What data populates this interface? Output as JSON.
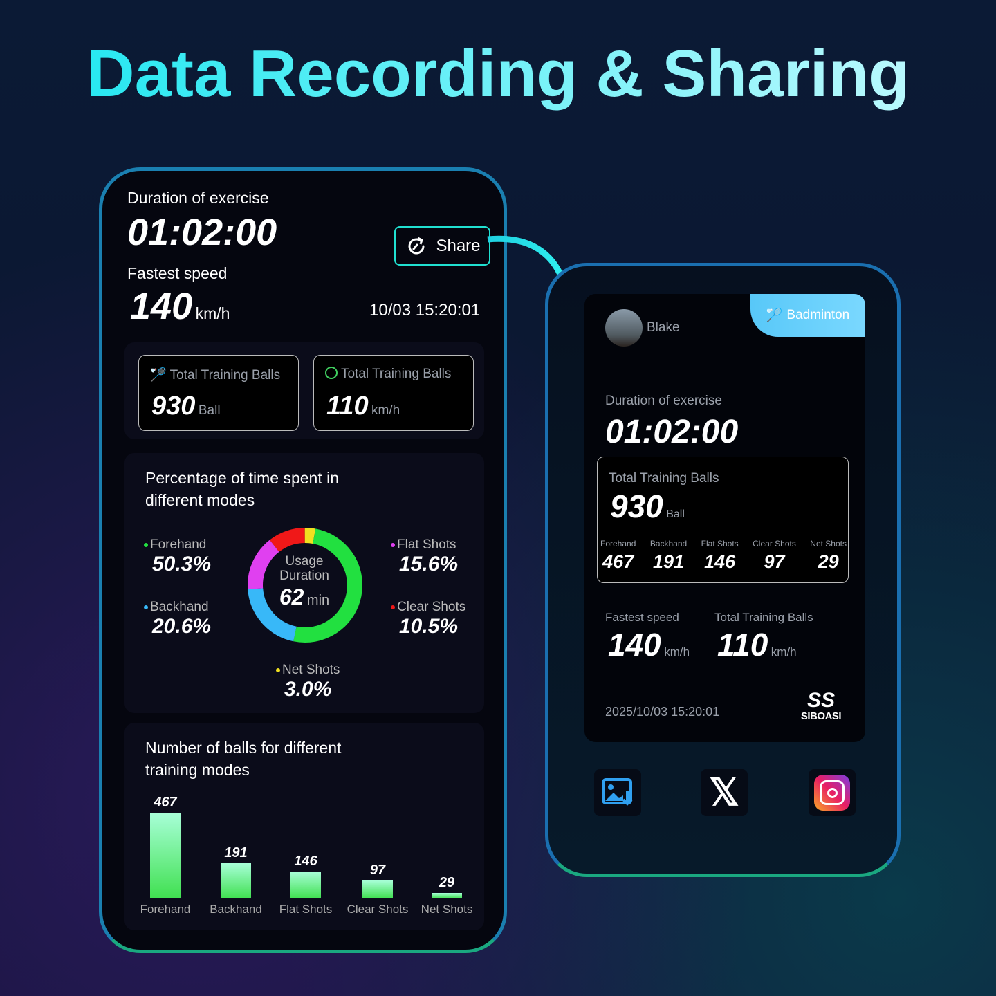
{
  "headline": "Data Recording & Sharing",
  "left": {
    "duration_label": "Duration of exercise",
    "duration": "01:02:00",
    "fastest_label": "Fastest speed",
    "fastest": "140",
    "speed_unit": "km/h",
    "datetime": "10/03 15:20:01",
    "share_label": "Share",
    "stat1": {
      "label": "Total Training Balls",
      "value": "930",
      "unit": "Ball",
      "icon": "shuttlecock-icon"
    },
    "stat2": {
      "label": "Total Training Balls",
      "value": "110",
      "unit": "km/h",
      "icon": "speed-gauge-icon"
    },
    "pct_title": "Percentage of time spent in different modes",
    "donut": {
      "center_label": "Usage Duration",
      "center_value": "62",
      "center_unit": "min"
    },
    "modes": [
      {
        "name": "Forehand",
        "pct": "50.3%",
        "value": 50.3,
        "color": "#22e040"
      },
      {
        "name": "Backhand",
        "pct": "20.6%",
        "value": 20.6,
        "color": "#38b8f8"
      },
      {
        "name": "Flat Shots",
        "pct": "15.6%",
        "value": 15.6,
        "color": "#e040f0"
      },
      {
        "name": "Clear Shots",
        "pct": "10.5%",
        "value": 10.5,
        "color": "#f01818"
      },
      {
        "name": "Net Shots",
        "pct": "3.0%",
        "value": 3.0,
        "color": "#f0e020"
      }
    ],
    "balls_title": "Number of balls for different training modes"
  },
  "chart_data": {
    "type": "bar",
    "categories": [
      "Forehand",
      "Backhand",
      "Flat Shots",
      "Clear Shots",
      "Net Shots"
    ],
    "values": [
      467,
      191,
      146,
      97,
      29
    ],
    "title": "Number of balls for different training modes"
  },
  "right": {
    "user": "Blake",
    "sport": "Badminton",
    "duration_label": "Duration of exercise",
    "duration": "01:02:00",
    "balls_label": "Total Training Balls",
    "balls": "930",
    "balls_unit": "Ball",
    "breakdown": [
      {
        "name": "Forehand",
        "value": "467"
      },
      {
        "name": "Backhand",
        "value": "191"
      },
      {
        "name": "Flat Shots",
        "value": "146"
      },
      {
        "name": "Clear Shots",
        "value": "97"
      },
      {
        "name": "Net Shots",
        "value": "29"
      }
    ],
    "fastest_label": "Fastest speed",
    "fastest": "140",
    "speed_unit": "km/h",
    "speed2_label": "Total Training Balls",
    "speed2": "110",
    "speed2_unit": "km/h",
    "datetime": "2025/10/03 15:20:01",
    "brand": "SIBOASI",
    "share_targets": [
      "save-image-icon",
      "x-icon",
      "instagram-icon"
    ]
  }
}
